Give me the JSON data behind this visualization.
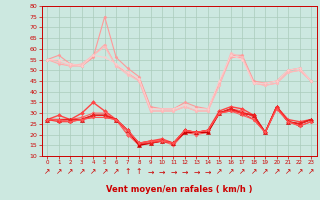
{
  "title": "",
  "xlabel": "Vent moyen/en rafales ( km/h )",
  "xlim": [
    -0.5,
    23.5
  ],
  "ylim": [
    10,
    80
  ],
  "yticks": [
    10,
    15,
    20,
    25,
    30,
    35,
    40,
    45,
    50,
    55,
    60,
    65,
    70,
    75,
    80
  ],
  "xticks": [
    0,
    1,
    2,
    3,
    4,
    5,
    6,
    7,
    8,
    9,
    10,
    11,
    12,
    13,
    14,
    15,
    16,
    17,
    18,
    19,
    20,
    21,
    22,
    23
  ],
  "bg_color": "#cce8e0",
  "grid_color": "#aaccbb",
  "series": [
    {
      "x": [
        0,
        1,
        2,
        3,
        4,
        5,
        6,
        7,
        8,
        9,
        10,
        11,
        12,
        13,
        14,
        15,
        16,
        17,
        18,
        19,
        20,
        21,
        22,
        23
      ],
      "y": [
        55,
        57,
        53,
        52,
        56,
        75,
        56,
        51,
        47,
        33,
        32,
        32,
        35,
        33,
        32,
        44,
        57,
        57,
        45,
        44,
        45,
        50,
        51,
        45
      ],
      "color": "#ff9999",
      "lw": 0.8,
      "marker": "D",
      "ms": 1.5
    },
    {
      "x": [
        0,
        1,
        2,
        3,
        4,
        5,
        6,
        7,
        8,
        9,
        10,
        11,
        12,
        13,
        14,
        15,
        16,
        17,
        18,
        19,
        20,
        21,
        22,
        23
      ],
      "y": [
        55,
        53,
        52,
        52,
        57,
        62,
        52,
        49,
        45,
        31,
        31,
        31,
        33,
        31,
        31,
        43,
        56,
        56,
        44,
        43,
        44,
        49,
        50,
        45
      ],
      "color": "#ffaaaa",
      "lw": 0.8,
      "marker": "D",
      "ms": 1.5
    },
    {
      "x": [
        0,
        1,
        2,
        3,
        4,
        5,
        6,
        7,
        8,
        9,
        10,
        11,
        12,
        13,
        14,
        15,
        16,
        17,
        18,
        19,
        20,
        21,
        22,
        23
      ],
      "y": [
        55,
        54,
        52,
        53,
        57,
        61,
        52,
        48,
        45,
        31,
        31,
        31,
        33,
        31,
        31,
        43,
        58,
        56,
        44,
        43,
        44,
        49,
        50,
        45
      ],
      "color": "#ffbbbb",
      "lw": 0.8,
      "marker": "D",
      "ms": 1.5
    },
    {
      "x": [
        0,
        1,
        2,
        3,
        4,
        5,
        6,
        7,
        8,
        9,
        10,
        11,
        12,
        13,
        14,
        15,
        16,
        17,
        18,
        19,
        20,
        21,
        22,
        23
      ],
      "y": [
        55,
        55,
        53,
        52,
        57,
        56,
        53,
        49,
        46,
        32,
        32,
        32,
        34,
        32,
        32,
        45,
        57,
        55,
        44,
        44,
        45,
        50,
        51,
        45
      ],
      "color": "#ffcccc",
      "lw": 0.7,
      "marker": "D",
      "ms": 1.2
    },
    {
      "x": [
        0,
        1,
        2,
        3,
        4,
        5,
        6,
        7,
        8,
        9,
        10,
        11,
        12,
        13,
        14,
        15,
        16,
        17,
        18,
        19,
        20,
        21,
        22,
        23
      ],
      "y": [
        27,
        29,
        27,
        30,
        35,
        31,
        27,
        20,
        16,
        17,
        18,
        16,
        22,
        21,
        22,
        31,
        33,
        32,
        29,
        21,
        33,
        27,
        26,
        27
      ],
      "color": "#ff4444",
      "lw": 1.0,
      "marker": "D",
      "ms": 2.0
    },
    {
      "x": [
        0,
        1,
        2,
        3,
        4,
        5,
        6,
        7,
        8,
        9,
        10,
        11,
        12,
        13,
        14,
        15,
        16,
        17,
        18,
        19,
        20,
        21,
        22,
        23
      ],
      "y": [
        27,
        27,
        27,
        28,
        30,
        30,
        27,
        20,
        15,
        16,
        17,
        15,
        21,
        20,
        21,
        30,
        32,
        31,
        28,
        21,
        32,
        26,
        25,
        27
      ],
      "color": "#ff6666",
      "lw": 0.8,
      "marker": "D",
      "ms": 1.8
    },
    {
      "x": [
        0,
        1,
        2,
        3,
        4,
        5,
        6,
        7,
        8,
        9,
        10,
        11,
        12,
        13,
        14,
        15,
        16,
        17,
        18,
        19,
        20,
        21,
        22,
        23
      ],
      "y": [
        27,
        27,
        27,
        27,
        29,
        29,
        27,
        22,
        15,
        16,
        17,
        16,
        21,
        21,
        21,
        30,
        32,
        30,
        29,
        21,
        33,
        26,
        25,
        27
      ],
      "color": "#cc0000",
      "lw": 1.0,
      "marker": "^",
      "ms": 3.0
    },
    {
      "x": [
        0,
        1,
        2,
        3,
        4,
        5,
        6,
        7,
        8,
        9,
        10,
        11,
        12,
        13,
        14,
        15,
        16,
        17,
        18,
        19,
        20,
        21,
        22,
        23
      ],
      "y": [
        27,
        27,
        27,
        27,
        29,
        29,
        27,
        22,
        16,
        16,
        17,
        16,
        22,
        21,
        22,
        30,
        32,
        30,
        29,
        21,
        33,
        26,
        25,
        27
      ],
      "color": "#ee2222",
      "lw": 0.9,
      "marker": "D",
      "ms": 1.8
    },
    {
      "x": [
        0,
        1,
        2,
        3,
        4,
        5,
        6,
        7,
        8,
        9,
        10,
        11,
        12,
        13,
        14,
        15,
        16,
        17,
        18,
        19,
        20,
        21,
        22,
        23
      ],
      "y": [
        27,
        26,
        26,
        27,
        28,
        28,
        27,
        22,
        16,
        17,
        17,
        16,
        22,
        21,
        22,
        30,
        31,
        30,
        27,
        21,
        33,
        26,
        24,
        26
      ],
      "color": "#ff3333",
      "lw": 0.8,
      "marker": "D",
      "ms": 1.5
    },
    {
      "x": [
        0,
        1,
        2,
        3,
        4,
        5,
        6,
        7,
        8,
        9,
        10,
        11,
        12,
        13,
        14,
        15,
        16,
        17,
        18,
        19,
        20,
        21,
        22,
        23
      ],
      "y": [
        27,
        27,
        26,
        27,
        28,
        28,
        27,
        22,
        16,
        17,
        17,
        16,
        22,
        21,
        22,
        30,
        31,
        29,
        27,
        21,
        32,
        26,
        24,
        26
      ],
      "color": "#ff5555",
      "lw": 0.7,
      "marker": "D",
      "ms": 1.2
    }
  ],
  "arrow_symbols": [
    "↗",
    "↗",
    "↗",
    "↗",
    "↗",
    "↗",
    "↗",
    "↑",
    "↑",
    "→",
    "→",
    "→",
    "→",
    "→",
    "→",
    "↗",
    "↗",
    "↗",
    "↗",
    "↗",
    "↗",
    "↗",
    "↗",
    "↗"
  ],
  "arrow_color": "#cc0000"
}
